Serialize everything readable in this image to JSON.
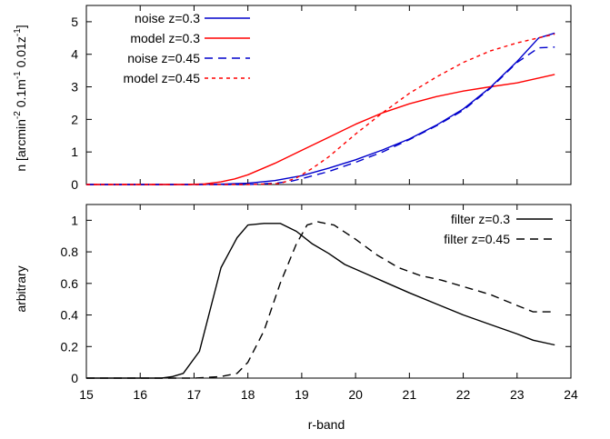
{
  "chart_data": [
    {
      "type": "line",
      "title": "",
      "xlabel": "",
      "ylabel": {
        "base": "n [arcmin",
        "sup1": "-2",
        "mid1": " 0.1m",
        "sup2": "-1",
        "mid2": " 0.01z",
        "sup3": "-1",
        "end": "]"
      },
      "xlim": [
        15,
        24
      ],
      "ylim": [
        0,
        5.5
      ],
      "xticks": [
        15,
        16,
        17,
        18,
        19,
        20,
        21,
        22,
        23,
        24
      ],
      "yticks": [
        0,
        1,
        2,
        3,
        4,
        5
      ],
      "show_x_tick_labels": false,
      "grid": false,
      "legend_position": "top-left",
      "series": [
        {
          "name": "noise z=0.3",
          "color": "#0000cc",
          "dash": "solid",
          "x": [
            15,
            16,
            17,
            17.5,
            18,
            18.5,
            19,
            19.5,
            20,
            20.5,
            21,
            21.5,
            22,
            22.5,
            23,
            23.4,
            23.7
          ],
          "y": [
            0,
            0,
            0,
            0.01,
            0.04,
            0.12,
            0.27,
            0.5,
            0.76,
            1.06,
            1.4,
            1.82,
            2.32,
            2.98,
            3.78,
            4.5,
            4.65
          ]
        },
        {
          "name": "model z=0.3",
          "color": "#ff0000",
          "dash": "solid",
          "x": [
            15,
            16,
            16.9,
            17.2,
            17.5,
            17.75,
            18,
            18.5,
            19,
            19.5,
            20,
            20.5,
            21,
            21.5,
            22,
            22.5,
            23,
            23.7
          ],
          "y": [
            0,
            0,
            0,
            0.02,
            0.08,
            0.17,
            0.3,
            0.65,
            1.05,
            1.45,
            1.85,
            2.2,
            2.48,
            2.7,
            2.87,
            3.0,
            3.12,
            3.38
          ]
        },
        {
          "name": "noise z=0.45",
          "color": "#0000cc",
          "dash": "long",
          "x": [
            15,
            16,
            17,
            18,
            18.5,
            18.8,
            19,
            19.5,
            20,
            20.5,
            21,
            21.5,
            22,
            22.5,
            23,
            23.4,
            23.7
          ],
          "y": [
            0,
            0,
            0,
            0,
            0.04,
            0.1,
            0.18,
            0.4,
            0.68,
            1.0,
            1.38,
            1.8,
            2.28,
            2.95,
            3.75,
            4.2,
            4.22
          ]
        },
        {
          "name": "model z=0.45",
          "color": "#ff0000",
          "dash": "short",
          "x": [
            15,
            16,
            17,
            18,
            18.6,
            18.9,
            19.2,
            19.5,
            20,
            20.5,
            21,
            21.5,
            22,
            22.5,
            23,
            23.7
          ],
          "y": [
            0,
            0,
            0,
            0,
            0.03,
            0.2,
            0.5,
            0.85,
            1.55,
            2.2,
            2.8,
            3.3,
            3.75,
            4.1,
            4.35,
            4.62
          ]
        }
      ]
    },
    {
      "type": "line",
      "title": "",
      "xlabel": "r-band",
      "ylabel": "arbitrary",
      "xlim": [
        15,
        24
      ],
      "ylim": [
        0,
        1.1
      ],
      "xticks": [
        15,
        16,
        17,
        18,
        19,
        20,
        21,
        22,
        23,
        24
      ],
      "yticks": [
        0,
        0.2,
        0.4,
        0.6,
        0.8,
        1
      ],
      "show_x_tick_labels": true,
      "grid": false,
      "legend_position": "top-right",
      "series": [
        {
          "name": "filter z=0.3",
          "color": "#000000",
          "dash": "solid",
          "x": [
            15,
            16,
            16.4,
            16.6,
            16.8,
            17.1,
            17.5,
            17.8,
            18.0,
            18.3,
            18.6,
            18.9,
            19.2,
            19.5,
            19.8,
            20.2,
            20.6,
            21,
            21.5,
            22,
            22.5,
            23,
            23.3,
            23.7
          ],
          "y": [
            0,
            0,
            0,
            0.01,
            0.03,
            0.17,
            0.7,
            0.89,
            0.97,
            0.98,
            0.98,
            0.93,
            0.85,
            0.79,
            0.72,
            0.66,
            0.6,
            0.54,
            0.47,
            0.4,
            0.34,
            0.28,
            0.24,
            0.21
          ]
        },
        {
          "name": "filter z=0.45",
          "color": "#000000",
          "dash": "long",
          "x": [
            15,
            16,
            17,
            17.5,
            17.8,
            18.0,
            18.3,
            18.6,
            18.9,
            19.1,
            19.3,
            19.6,
            20.0,
            20.4,
            20.8,
            21.2,
            21.6,
            22,
            22.5,
            23,
            23.3,
            23.7
          ],
          "y": [
            0,
            0,
            0,
            0.01,
            0.03,
            0.1,
            0.3,
            0.6,
            0.85,
            0.97,
            0.99,
            0.97,
            0.88,
            0.78,
            0.7,
            0.65,
            0.62,
            0.58,
            0.53,
            0.46,
            0.42,
            0.42
          ]
        }
      ]
    }
  ]
}
